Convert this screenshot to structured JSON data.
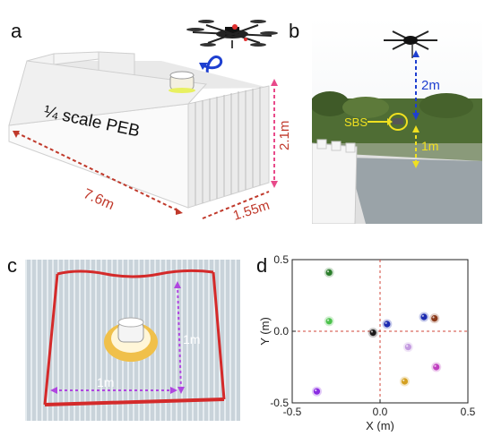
{
  "panels": {
    "a": {
      "letter": "a",
      "building_label": "¼ scale PEB",
      "dim_length": "7.6m",
      "dim_width": "1.55m",
      "dim_height": "2.1m"
    },
    "b": {
      "letter": "b",
      "sbs_label": "SBS",
      "dim_drone_height": "2m",
      "dim_sbs_height": "1m"
    },
    "c": {
      "letter": "c",
      "dim_vertical": "1m",
      "dim_horizontal": "1m"
    },
    "d": {
      "letter": "d"
    }
  },
  "colors": {
    "dim_red": "#c0392b",
    "dim_pink": "#e84a8a",
    "dim_blue": "#1e3fd0",
    "dim_yellow": "#f0e020",
    "dim_purple": "#b046e0",
    "mat_red": "#d42a2a"
  },
  "chart_data": {
    "type": "scatter",
    "title": "",
    "xlabel": "X (m)",
    "ylabel": "Y (m)",
    "xlim": [
      -0.5,
      0.5
    ],
    "ylim": [
      -0.5,
      0.5
    ],
    "xticks": [
      "-0.5",
      "0.0",
      "0.5"
    ],
    "yticks": [
      "0.5",
      "0.0",
      "-0.5"
    ],
    "crosshair_at_origin": true,
    "points": [
      {
        "x": -0.29,
        "y": 0.41,
        "color": "#2a7d2a"
      },
      {
        "x": -0.29,
        "y": 0.07,
        "color": "#4cc24c"
      },
      {
        "x": -0.04,
        "y": -0.01,
        "color": "#1a1a1a"
      },
      {
        "x": 0.04,
        "y": 0.05,
        "color": "#1c2bb0"
      },
      {
        "x": 0.25,
        "y": 0.1,
        "color": "#1c2bb0"
      },
      {
        "x": 0.31,
        "y": 0.09,
        "color": "#8b3a1a"
      },
      {
        "x": 0.16,
        "y": -0.11,
        "color": "#c49be0"
      },
      {
        "x": 0.32,
        "y": -0.25,
        "color": "#c040c0"
      },
      {
        "x": 0.14,
        "y": -0.35,
        "color": "#d4a020"
      },
      {
        "x": -0.36,
        "y": -0.42,
        "color": "#8a2be2"
      }
    ]
  }
}
